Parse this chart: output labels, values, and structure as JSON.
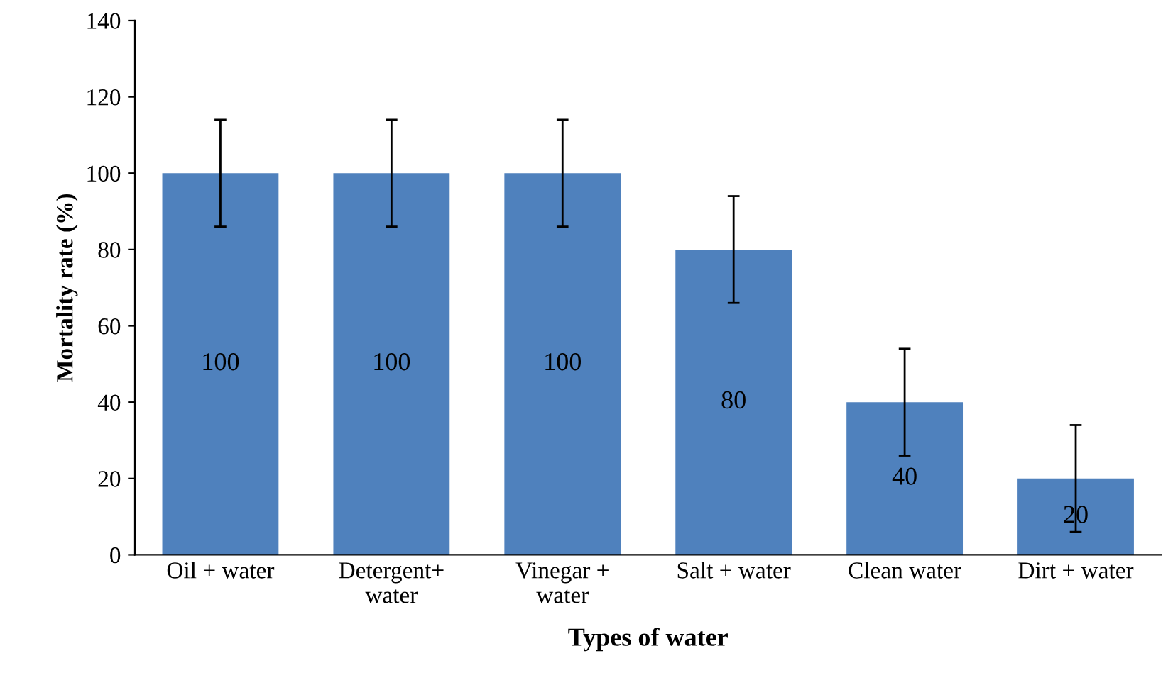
{
  "chart_data": {
    "type": "bar",
    "xlabel": "Types of water",
    "ylabel": "Mortality rate (%)",
    "categories": [
      "Oil + water",
      "Detergent+\nwater",
      "Vinegar +\nwater",
      "Salt + water",
      "Clean water",
      "Dirt + water"
    ],
    "values": [
      100,
      100,
      100,
      80,
      40,
      20
    ],
    "errors": [
      14,
      14,
      14,
      14,
      14,
      14
    ],
    "color": "#4f81bd",
    "ylim": [
      0,
      140
    ],
    "yticks": [
      0,
      20,
      40,
      60,
      80,
      100,
      120,
      140
    ],
    "grid": false,
    "data_labels": true
  }
}
